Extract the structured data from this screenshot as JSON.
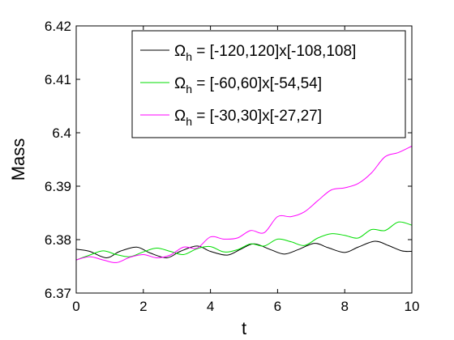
{
  "chart_data": {
    "type": "line",
    "title": "",
    "xlabel": "t",
    "ylabel": "Mass",
    "xlim": [
      0,
      10
    ],
    "ylim": [
      6.37,
      6.42
    ],
    "xticks": [
      0,
      2,
      4,
      6,
      8,
      10
    ],
    "yticks": [
      6.37,
      6.38,
      6.39,
      6.4,
      6.41,
      6.42
    ],
    "xtick_labels": [
      "0",
      "2",
      "4",
      "6",
      "8",
      "10"
    ],
    "ytick_labels": [
      "6.37",
      "6.38",
      "6.39",
      "6.4",
      "6.41",
      "6.42"
    ],
    "grid": false,
    "legend_position": "top-right",
    "series": [
      {
        "name_base": "Ω",
        "name_sub": "h",
        "name_rest": " = [-120,120]x[-108,108]",
        "color": "#000000",
        "x": [
          0,
          0.4,
          0.9,
          1.3,
          1.8,
          2.2,
          2.7,
          3.1,
          3.6,
          4.0,
          4.5,
          4.9,
          5.3,
          5.8,
          6.2,
          6.6,
          7.1,
          7.5,
          8.0,
          8.4,
          8.9,
          9.3,
          9.7,
          10
        ],
        "y": [
          6.3782,
          6.3778,
          6.3766,
          6.3778,
          6.3786,
          6.3775,
          6.3766,
          6.3778,
          6.3788,
          6.3778,
          6.3771,
          6.3782,
          6.3792,
          6.3781,
          6.3773,
          6.3781,
          6.3793,
          6.3785,
          6.3776,
          6.3786,
          6.3797,
          6.3789,
          6.3779,
          6.3778
        ]
      },
      {
        "name_base": "Ω",
        "name_sub": "h",
        "name_rest": " = [-60,60]x[-54,54]",
        "color": "#00dd00",
        "x": [
          0,
          0.4,
          0.8,
          1.2,
          1.6,
          2.0,
          2.4,
          2.8,
          3.2,
          3.6,
          4.0,
          4.4,
          4.8,
          5.2,
          5.6,
          6.0,
          6.4,
          6.8,
          7.2,
          7.6,
          8.0,
          8.4,
          8.8,
          9.2,
          9.6,
          10
        ],
        "y": [
          6.3762,
          6.3771,
          6.3779,
          6.3772,
          6.3768,
          6.3777,
          6.3784,
          6.3778,
          6.3772,
          6.3783,
          6.3787,
          6.3777,
          6.3781,
          6.3792,
          6.3788,
          6.3801,
          6.3796,
          6.3789,
          6.3803,
          6.3811,
          6.3808,
          6.3803,
          6.3819,
          6.3817,
          6.3833,
          6.3827
        ]
      },
      {
        "name_base": "Ω",
        "name_sub": "h",
        "name_rest": " = [-30,30]x[-27,27]",
        "color": "#ff00ff",
        "x": [
          0,
          0.4,
          0.8,
          1.2,
          1.6,
          2.0,
          2.4,
          2.8,
          3.2,
          3.6,
          4.0,
          4.4,
          4.8,
          5.2,
          5.6,
          6.0,
          6.4,
          6.8,
          7.2,
          7.6,
          8.0,
          8.4,
          8.8,
          9.2,
          9.6,
          10
        ],
        "y": [
          6.3762,
          6.3768,
          6.3762,
          6.3757,
          6.3767,
          6.3772,
          6.3766,
          6.3771,
          6.3786,
          6.3784,
          6.3805,
          6.3801,
          6.3803,
          6.3817,
          6.3813,
          6.3843,
          6.3843,
          6.3852,
          6.3873,
          6.3893,
          6.3897,
          6.3905,
          6.3925,
          6.3955,
          6.3963,
          6.3975
        ]
      }
    ]
  }
}
